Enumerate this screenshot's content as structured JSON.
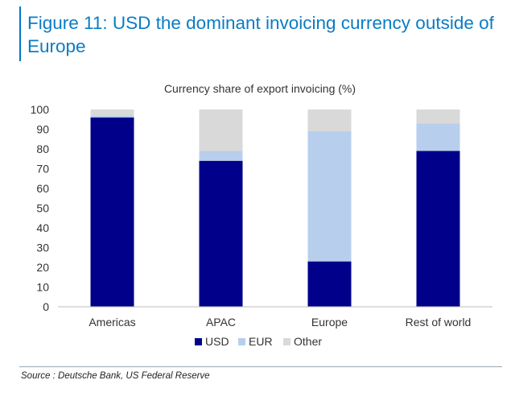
{
  "figure_title": "Figure 11: USD the dominant invoicing currency outside of Europe",
  "source": "Source : Deutsche Bank, US Federal Reserve",
  "colors": {
    "title": "#0a7cc4",
    "usd": "#00008b",
    "eur": "#b7cfed",
    "other": "#d9d9d9"
  },
  "chart_data": {
    "type": "bar",
    "stacked": true,
    "title": "Currency share of export invoicing (%)",
    "xlabel": "",
    "ylabel": "",
    "categories": [
      "Americas",
      "APAC",
      "Europe",
      "Rest of world"
    ],
    "series": [
      {
        "name": "USD",
        "color": "#00008b",
        "values": [
          96,
          74,
          23,
          79
        ]
      },
      {
        "name": "EUR",
        "color": "#b7cfed",
        "values": [
          1,
          5,
          66,
          14
        ]
      },
      {
        "name": "Other",
        "color": "#d9d9d9",
        "values": [
          3,
          21,
          11,
          7
        ]
      }
    ],
    "ylim": [
      0,
      100
    ],
    "yticks": [
      0,
      10,
      20,
      30,
      40,
      50,
      60,
      70,
      80,
      90,
      100
    ],
    "grid": false,
    "legend_position": "bottom"
  }
}
